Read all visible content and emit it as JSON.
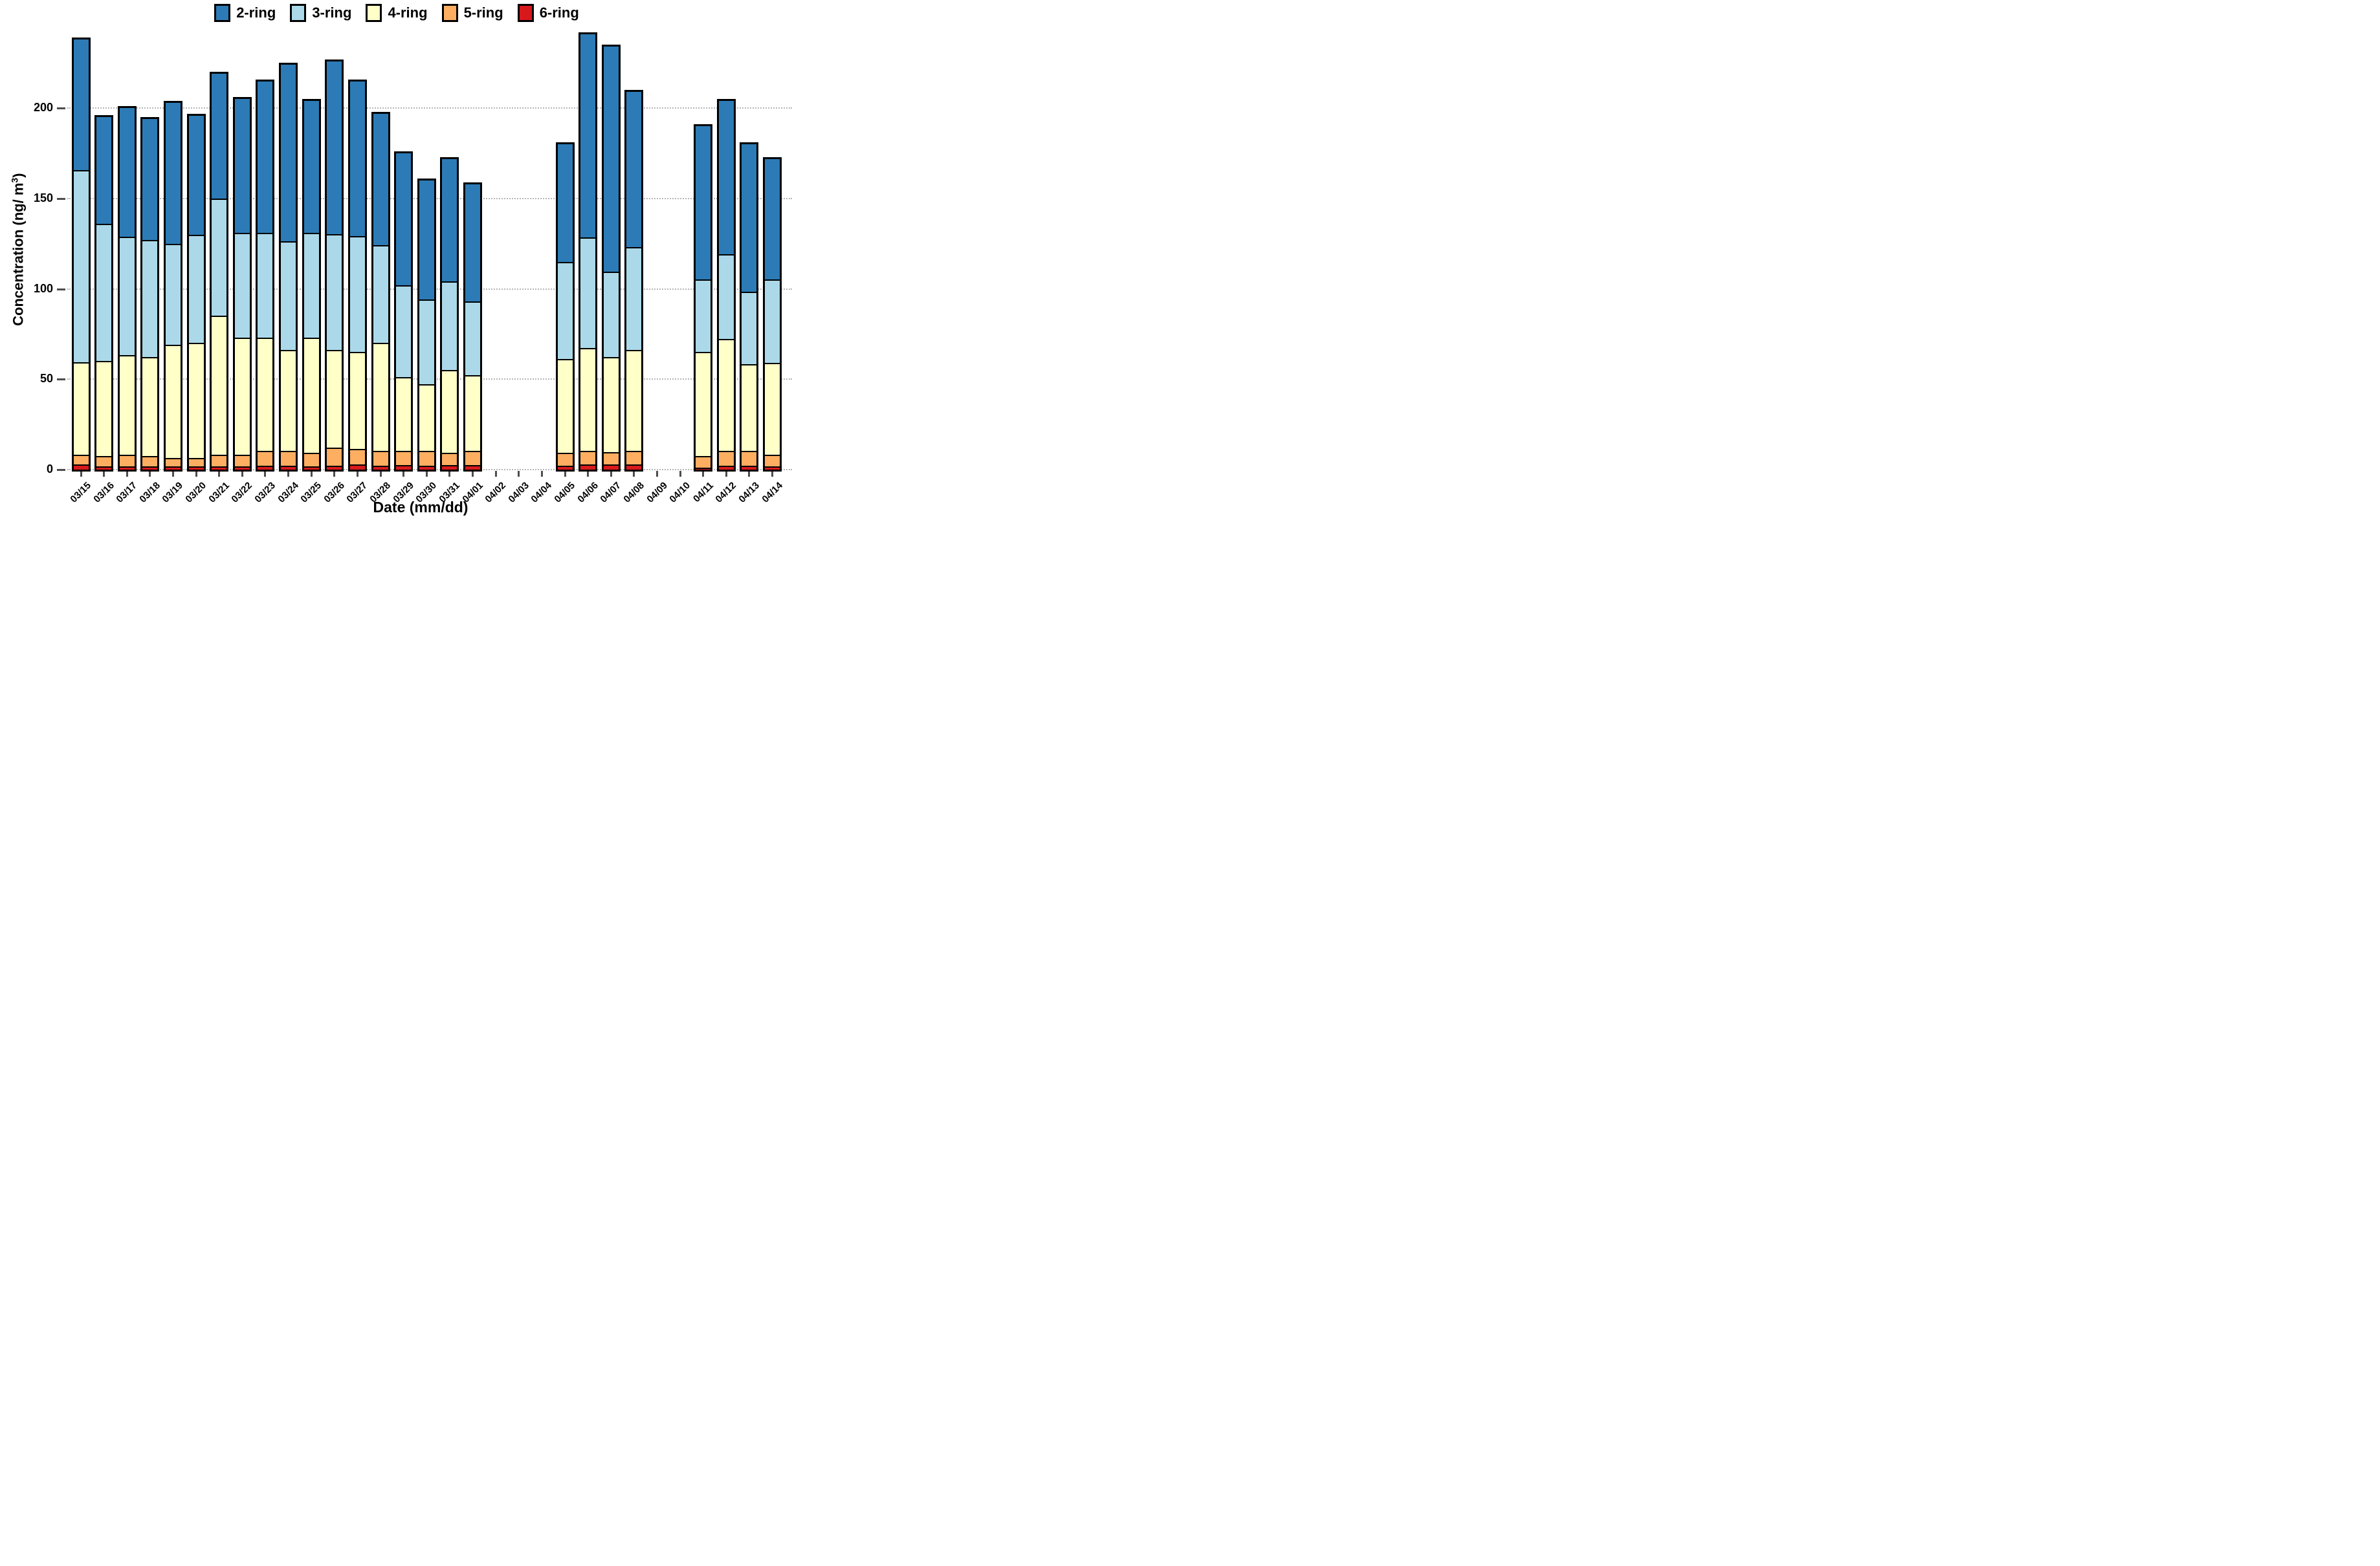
{
  "legend": {
    "items": [
      {
        "label": "2-ring",
        "color": "#2c7bb6"
      },
      {
        "label": "3-ring",
        "color": "#abd9e9"
      },
      {
        "label": "4-ring",
        "color": "#ffffc8"
      },
      {
        "label": "5-ring",
        "color": "#fdae61"
      },
      {
        "label": "6-ring",
        "color": "#d7191c"
      }
    ]
  },
  "axes": {
    "y_title_main": "Concentration (ng/ m",
    "y_title_sup": "3",
    "y_title_end": ")",
    "x_title": "Date (mm/dd)",
    "y_tick_labels": [
      "0",
      "50",
      "100",
      "150",
      "200"
    ]
  },
  "chart_data": {
    "type": "bar",
    "stacked": true,
    "title": "",
    "xlabel": "Date (mm/dd)",
    "ylabel": "Concentration (ng/ m3)",
    "ylim": [
      0,
      245
    ],
    "y_ticks": [
      0,
      50,
      100,
      150,
      200
    ],
    "grid": "horizontal dotted at each y tick",
    "legend_position": "top",
    "note_missing_dates": [
      "04/02",
      "04/03",
      "04/04",
      "04/09",
      "04/10"
    ],
    "categories": [
      "03/15",
      "03/16",
      "03/17",
      "03/18",
      "03/19",
      "03/20",
      "03/21",
      "03/22",
      "03/23",
      "03/24",
      "03/25",
      "03/26",
      "03/27",
      "03/28",
      "03/29",
      "03/30",
      "03/31",
      "04/01",
      "04/02",
      "04/03",
      "04/04",
      "04/05",
      "04/06",
      "04/07",
      "04/08",
      "04/09",
      "04/10",
      "04/11",
      "04/12",
      "04/13",
      "04/14"
    ],
    "series": [
      {
        "name": "6-ring",
        "color": "#d7191c",
        "values": [
          2,
          1,
          1,
          1,
          1,
          1,
          1,
          1,
          1.5,
          1.5,
          1,
          1.5,
          2,
          1.5,
          2,
          1.5,
          2,
          2,
          null,
          null,
          null,
          1.5,
          2,
          2,
          2,
          null,
          null,
          0.5,
          1.5,
          1.5,
          1
        ]
      },
      {
        "name": "5-ring",
        "color": "#fdae61",
        "values": [
          5,
          5,
          6,
          5,
          4,
          4,
          6,
          6,
          7.5,
          7.5,
          7,
          9.5,
          8,
          7.5,
          7,
          7.5,
          6,
          7,
          null,
          null,
          null,
          6.5,
          7,
          6.5,
          7,
          null,
          null,
          5.5,
          7.5,
          7.5,
          6
        ]
      },
      {
        "name": "4-ring",
        "color": "#ffffc8",
        "values": [
          51,
          53,
          55,
          55,
          63,
          64,
          77,
          65,
          63,
          56,
          64,
          54,
          54,
          60,
          41,
          37,
          46,
          42,
          null,
          null,
          null,
          52,
          57,
          52.5,
          56,
          null,
          null,
          58,
          62,
          48,
          51
        ]
      },
      {
        "name": "3-ring",
        "color": "#abd9e9",
        "values": [
          107,
          76,
          66,
          65,
          56,
          60,
          65,
          58,
          58,
          60,
          58,
          64,
          64,
          54,
          51,
          47,
          49,
          41,
          null,
          null,
          null,
          54,
          61,
          47,
          57,
          null,
          null,
          40,
          47,
          40,
          46
        ]
      },
      {
        "name": "2-ring",
        "color": "#2c7bb6",
        "values": [
          73,
          60,
          72,
          68,
          79,
          67,
          70,
          75,
          85,
          99,
          74,
          97,
          87,
          74,
          74,
          67,
          69,
          66,
          null,
          null,
          null,
          66,
          114,
          126,
          87,
          null,
          null,
          86,
          86,
          83,
          68
        ]
      }
    ],
    "stack_totals": [
      238,
      195,
      200,
      194,
      203,
      196,
      219,
      205,
      215,
      224,
      204,
      226,
      215,
      197,
      175,
      160,
      172,
      158,
      null,
      null,
      null,
      180,
      241,
      234,
      209,
      null,
      null,
      190,
      204,
      180,
      172
    ]
  }
}
